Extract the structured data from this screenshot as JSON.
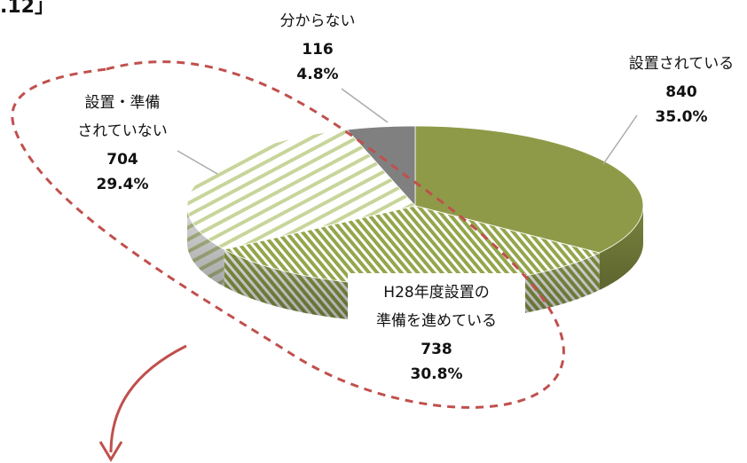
{
  "header_fragment": ".12」",
  "chart_data": {
    "type": "pie",
    "labels": [
      [
        "設置されている"
      ],
      [
        "H28年度設置の",
        "準備を進めている"
      ],
      [
        "設置・準備",
        "されていない"
      ],
      [
        "分からない"
      ]
    ],
    "values": [
      840,
      738,
      704,
      116
    ],
    "percents": [
      35.0,
      30.8,
      29.4,
      4.8
    ],
    "percent_labels": [
      "35.0%",
      "30.8%",
      "29.4%",
      "4.8%"
    ],
    "colors": [
      "#8f9a48",
      "#93a64c",
      "#b3c47e",
      "#808080"
    ],
    "fills": [
      "solid",
      "stripes-dense",
      "stripes-light",
      "solid"
    ]
  }
}
